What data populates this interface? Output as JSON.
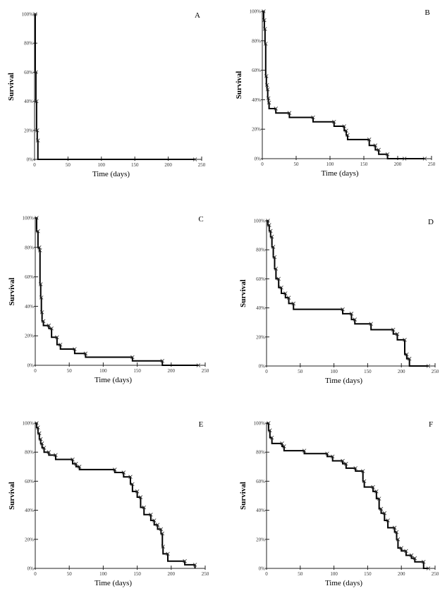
{
  "chart_data": [
    {
      "type": "line",
      "panel_label": "A",
      "xlabel": "Time (days)",
      "ylabel": "Survival",
      "xlim": [
        0,
        250
      ],
      "ylim": [
        0,
        100
      ],
      "x_ticks": [
        "0",
        "50",
        "100",
        "150",
        "200",
        "250"
      ],
      "y_ticks": [
        "0%",
        "20%",
        "40%",
        "60%",
        "80%",
        "100%"
      ],
      "steps": [
        [
          0,
          100
        ],
        [
          1,
          60
        ],
        [
          2,
          40
        ],
        [
          3,
          20
        ],
        [
          4,
          13
        ],
        [
          5,
          0
        ]
      ],
      "censored": [
        240
      ]
    },
    {
      "type": "line",
      "panel_label": "B",
      "xlabel": "Time (days)",
      "ylabel": "Survival",
      "xlim": [
        0,
        250
      ],
      "ylim": [
        0,
        100
      ],
      "x_ticks": [
        "0",
        "50",
        "100",
        "150",
        "200",
        "250"
      ],
      "y_ticks": [
        "0%",
        "20%",
        "40%",
        "60%",
        "80%",
        "100%"
      ],
      "steps": [
        [
          0,
          100
        ],
        [
          2,
          94
        ],
        [
          3,
          88
        ],
        [
          4,
          78
        ],
        [
          5,
          56
        ],
        [
          6,
          50
        ],
        [
          7,
          47
        ],
        [
          8,
          41
        ],
        [
          9,
          38
        ],
        [
          10,
          34
        ],
        [
          20,
          31
        ],
        [
          40,
          28
        ],
        [
          75,
          25
        ],
        [
          106,
          22
        ],
        [
          121,
          19
        ],
        [
          124,
          16
        ],
        [
          126,
          13
        ],
        [
          158,
          9
        ],
        [
          167,
          6
        ],
        [
          172,
          3
        ],
        [
          185,
          0
        ]
      ],
      "censored": [
        210,
        240
      ]
    },
    {
      "type": "line",
      "panel_label": "C",
      "xlabel": "Time (days)",
      "ylabel": "Survival",
      "xlim": [
        0,
        250
      ],
      "ylim": [
        0,
        100
      ],
      "x_ticks": [
        "0",
        "50",
        "100",
        "150",
        "200",
        "250"
      ],
      "y_ticks": [
        "0%",
        "20%",
        "40%",
        "60%",
        "80%",
        "100%"
      ],
      "steps": [
        [
          0,
          100
        ],
        [
          2,
          91
        ],
        [
          4,
          80
        ],
        [
          6,
          78
        ],
        [
          7,
          55
        ],
        [
          8,
          46
        ],
        [
          9,
          36
        ],
        [
          10,
          30
        ],
        [
          12,
          27
        ],
        [
          20,
          25
        ],
        [
          24,
          19
        ],
        [
          32,
          14
        ],
        [
          37,
          11
        ],
        [
          58,
          8
        ],
        [
          74,
          5.5
        ],
        [
          143,
          3
        ],
        [
          187,
          0
        ]
      ],
      "censored": [
        240
      ]
    },
    {
      "type": "line",
      "panel_label": "D",
      "xlabel": "Time (days)",
      "ylabel": "Survival",
      "xlim": [
        0,
        250
      ],
      "ylim": [
        0,
        100
      ],
      "x_ticks": [
        "0",
        "50",
        "100",
        "150",
        "200",
        "250"
      ],
      "y_ticks": [
        "0%",
        "20%",
        "40%",
        "60%",
        "80%",
        "100%"
      ],
      "steps": [
        [
          0,
          100
        ],
        [
          2,
          97
        ],
        [
          4,
          93
        ],
        [
          6,
          89
        ],
        [
          8,
          82
        ],
        [
          10,
          75
        ],
        [
          12,
          67
        ],
        [
          14,
          60
        ],
        [
          18,
          54
        ],
        [
          22,
          50
        ],
        [
          28,
          47
        ],
        [
          33,
          43
        ],
        [
          40,
          39
        ],
        [
          113,
          36
        ],
        [
          126,
          32
        ],
        [
          131,
          29
        ],
        [
          155,
          25
        ],
        [
          188,
          22
        ],
        [
          194,
          18
        ],
        [
          205,
          8
        ],
        [
          208,
          5
        ],
        [
          212,
          0
        ]
      ],
      "censored": [
        240
      ]
    },
    {
      "type": "line",
      "panel_label": "E",
      "xlabel": "Time (days)",
      "ylabel": "Survival",
      "xlim": [
        0,
        250
      ],
      "ylim": [
        0,
        100
      ],
      "x_ticks": [
        "0",
        "50",
        "100",
        "150",
        "200",
        "250"
      ],
      "y_ticks": [
        "0%",
        "20%",
        "40%",
        "60%",
        "80%",
        "100%"
      ],
      "steps": [
        [
          0,
          100
        ],
        [
          2,
          97
        ],
        [
          4,
          93
        ],
        [
          6,
          89
        ],
        [
          8,
          86
        ],
        [
          10,
          83
        ],
        [
          13,
          80
        ],
        [
          20,
          78
        ],
        [
          30,
          75
        ],
        [
          55,
          72
        ],
        [
          60,
          70
        ],
        [
          65,
          68
        ],
        [
          117,
          66
        ],
        [
          130,
          63
        ],
        [
          140,
          58
        ],
        [
          143,
          53
        ],
        [
          150,
          49
        ],
        [
          155,
          42
        ],
        [
          160,
          37
        ],
        [
          170,
          33
        ],
        [
          175,
          30
        ],
        [
          180,
          27
        ],
        [
          185,
          24
        ],
        [
          187,
          15
        ],
        [
          188,
          10
        ],
        [
          195,
          5
        ],
        [
          220,
          2.5
        ],
        [
          235,
          0
        ]
      ],
      "censored": []
    },
    {
      "type": "line",
      "panel_label": "F",
      "xlabel": "Time (days)",
      "ylabel": "Survival",
      "xlim": [
        0,
        250
      ],
      "ylim": [
        0,
        100
      ],
      "x_ticks": [
        "0",
        "50",
        "100",
        "150",
        "200",
        "250"
      ],
      "y_ticks": [
        "0%",
        "20%",
        "40%",
        "60%",
        "80%",
        "100%"
      ],
      "steps": [
        [
          0,
          100
        ],
        [
          3,
          95
        ],
        [
          5,
          90
        ],
        [
          8,
          86
        ],
        [
          23,
          84
        ],
        [
          26,
          81
        ],
        [
          56,
          79
        ],
        [
          90,
          77
        ],
        [
          98,
          74
        ],
        [
          113,
          72
        ],
        [
          118,
          69
        ],
        [
          132,
          67
        ],
        [
          143,
          60
        ],
        [
          145,
          56
        ],
        [
          158,
          53
        ],
        [
          163,
          48
        ],
        [
          167,
          41
        ],
        [
          170,
          38
        ],
        [
          175,
          33
        ],
        [
          180,
          28
        ],
        [
          190,
          25
        ],
        [
          193,
          20
        ],
        [
          195,
          14
        ],
        [
          200,
          12
        ],
        [
          207,
          9
        ],
        [
          215,
          7
        ],
        [
          220,
          4.5
        ],
        [
          233,
          0
        ]
      ],
      "censored": [
        240
      ]
    }
  ]
}
